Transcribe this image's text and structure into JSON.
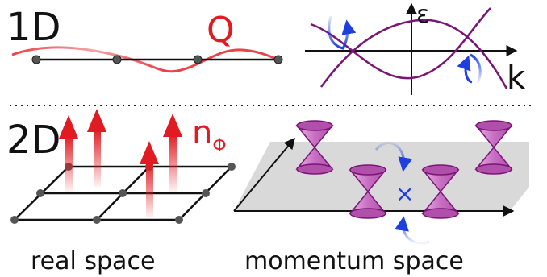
{
  "labels": {
    "row_1d": "1D",
    "row_2d": "2D",
    "wavevector": "Q",
    "energy_axis": "ε",
    "momentum_axis": "k",
    "order_param_base": "n",
    "order_param_sub": "Φ",
    "caption_real": "real space",
    "caption_momentum": "momentum space",
    "crossing_marker": "×"
  },
  "colors": {
    "text": "#111111",
    "lattice": "#111111",
    "site": "#555555",
    "wave": "#e8444a",
    "order_param": "#e11b22",
    "band": "#7a1577",
    "scatter_arrow": "#1d3fe0",
    "cone_fill": "#c86fc3",
    "cone_stroke": "#7a1577",
    "plane": "#d9d9d9",
    "divider": "#222222"
  },
  "icons": {
    "spin_arrow": "up-arrow",
    "dirac_cone": "double-cone",
    "scatter": "curved-arrow"
  }
}
